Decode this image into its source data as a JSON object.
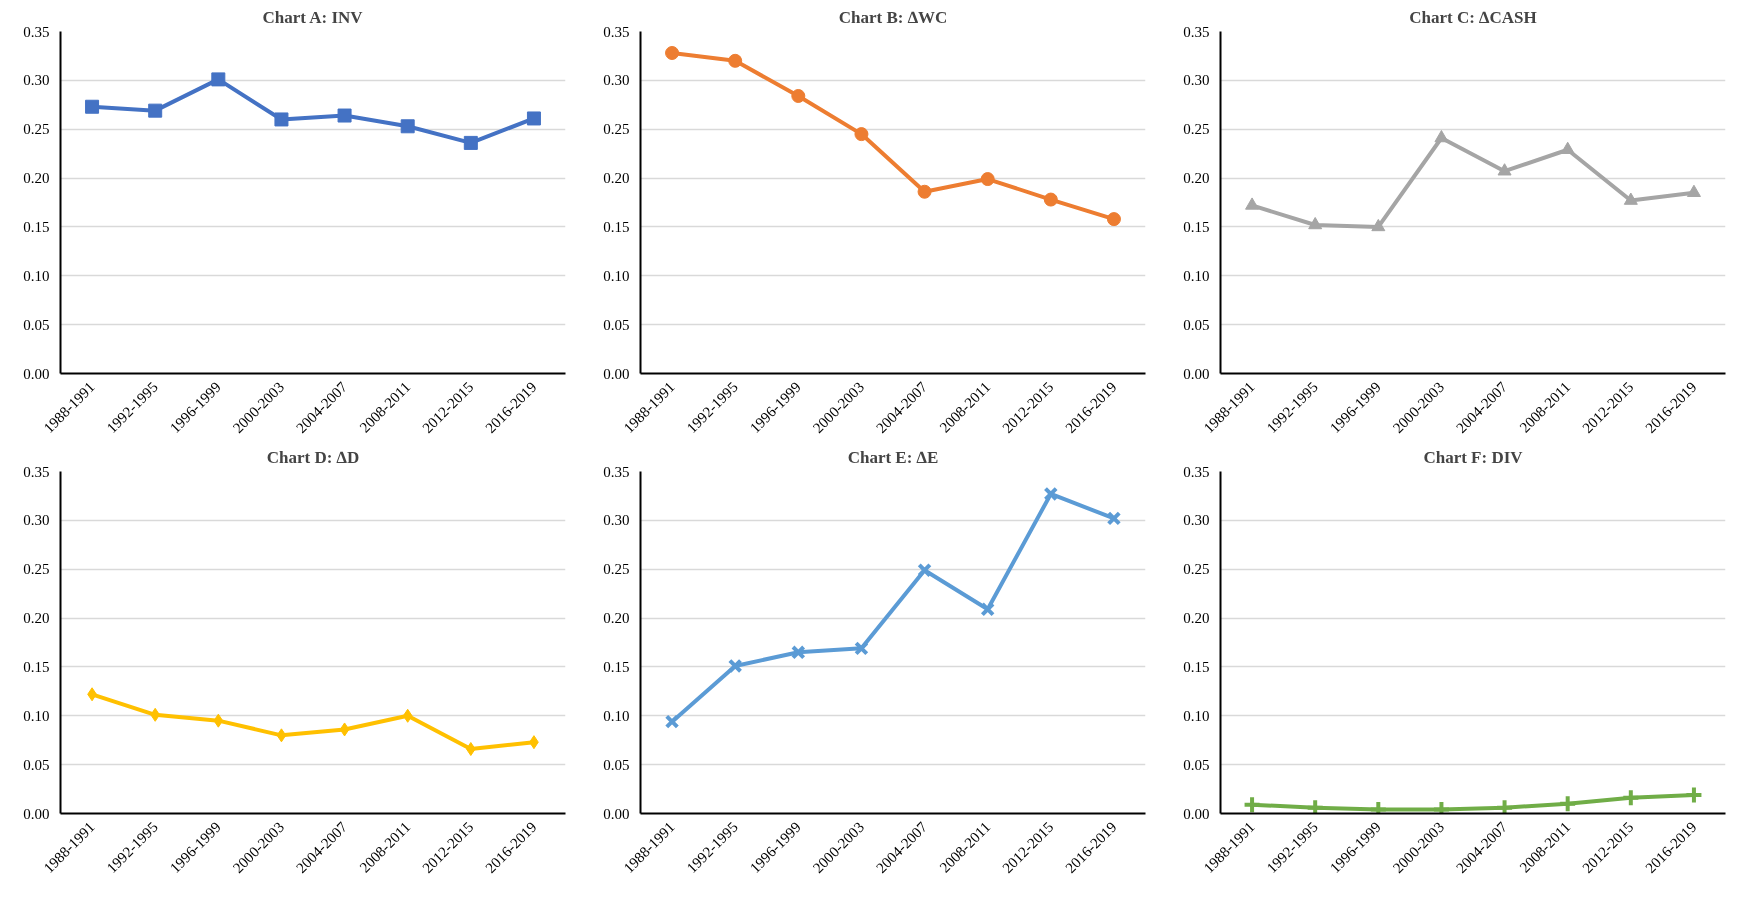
{
  "chart_data": [
    {
      "type": "line",
      "title": "Chart A: INV",
      "categories": [
        "1988-1991",
        "1992-1995",
        "1996-1999",
        "2000-2003",
        "2004-2007",
        "2008-2011",
        "2012-2015",
        "2016-2019"
      ],
      "series": [
        {
          "color": "#4472c4",
          "values": [
            0.273,
            0.269,
            0.301,
            0.26,
            0.264,
            0.253,
            0.236,
            0.261
          ]
        }
      ],
      "marker": "square",
      "ylim": [
        0,
        0.35
      ],
      "yticks": [
        {
          "value": 0,
          "label": "0.00"
        },
        {
          "value": 0.05,
          "label": "0.05"
        },
        {
          "value": 0.1,
          "label": "0.10"
        },
        {
          "value": 0.15,
          "label": "0.15"
        },
        {
          "value": 0.2,
          "label": "0.20"
        },
        {
          "value": 0.25,
          "label": "0.25"
        },
        {
          "value": 0.3,
          "label": "0.30"
        },
        {
          "value": 0.35,
          "label": "0.35"
        }
      ],
      "grid": "y"
    },
    {
      "type": "line",
      "title": "Chart B: ∆WC",
      "categories": [
        "1988-1991",
        "1992-1995",
        "1996-1999",
        "2000-2003",
        "2004-2007",
        "2008-2011",
        "2012-2015",
        "2016-2019"
      ],
      "series": [
        {
          "color": "#ed7d31",
          "values": [
            0.328,
            0.32,
            0.284,
            0.245,
            0.186,
            0.199,
            0.178,
            0.158
          ]
        }
      ],
      "marker": "circle",
      "ylim": [
        0,
        0.35
      ],
      "yticks": [
        {
          "value": 0,
          "label": "0.00"
        },
        {
          "value": 0.05,
          "label": "0.05"
        },
        {
          "value": 0.1,
          "label": "0.10"
        },
        {
          "value": 0.15,
          "label": "0.15"
        },
        {
          "value": 0.2,
          "label": "0.20"
        },
        {
          "value": 0.25,
          "label": "0.25"
        },
        {
          "value": 0.3,
          "label": "0.30"
        },
        {
          "value": 0.35,
          "label": "0.35"
        }
      ],
      "grid": "y"
    },
    {
      "type": "line",
      "title": "Chart C: ∆CASH",
      "categories": [
        "1988-1991",
        "1992-1995",
        "1996-1999",
        "2000-2003",
        "2004-2007",
        "2008-2011",
        "2012-2015",
        "2016-2019"
      ],
      "series": [
        {
          "color": "#a5a5a5",
          "values": [
            0.172,
            0.152,
            0.15,
            0.241,
            0.207,
            0.229,
            0.177,
            0.185
          ]
        }
      ],
      "marker": "triangle",
      "ylim": [
        0,
        0.35
      ],
      "yticks": [
        {
          "value": 0,
          "label": "0.00"
        },
        {
          "value": 0.05,
          "label": "0.05"
        },
        {
          "value": 0.1,
          "label": "0.10"
        },
        {
          "value": 0.15,
          "label": "0.15"
        },
        {
          "value": 0.2,
          "label": "0.20"
        },
        {
          "value": 0.25,
          "label": "0.25"
        },
        {
          "value": 0.3,
          "label": "0.30"
        },
        {
          "value": 0.35,
          "label": "0.35"
        }
      ],
      "grid": "y"
    },
    {
      "type": "line",
      "title": "Chart D: ∆D",
      "categories": [
        "1988-1991",
        "1992-1995",
        "1996-1999",
        "2000-2003",
        "2004-2007",
        "2008-2011",
        "2012-2015",
        "2016-2019"
      ],
      "series": [
        {
          "color": "#ffc000",
          "values": [
            0.122,
            0.101,
            0.095,
            0.08,
            0.086,
            0.1,
            0.066,
            0.073
          ]
        }
      ],
      "marker": "diamond",
      "ylim": [
        0,
        0.35
      ],
      "yticks": [
        {
          "value": 0,
          "label": "0.00"
        },
        {
          "value": 0.05,
          "label": "0.05"
        },
        {
          "value": 0.1,
          "label": "0.10"
        },
        {
          "value": 0.15,
          "label": "0.15"
        },
        {
          "value": 0.2,
          "label": "0.20"
        },
        {
          "value": 0.25,
          "label": "0.25"
        },
        {
          "value": 0.3,
          "label": "0.30"
        },
        {
          "value": 0.35,
          "label": "0.35"
        }
      ],
      "grid": "y"
    },
    {
      "type": "line",
      "title": "Chart E: ∆E",
      "categories": [
        "1988-1991",
        "1992-1995",
        "1996-1999",
        "2000-2003",
        "2004-2007",
        "2008-2011",
        "2012-2015",
        "2016-2019"
      ],
      "series": [
        {
          "color": "#5b9bd5",
          "values": [
            0.094,
            0.151,
            0.165,
            0.169,
            0.249,
            0.209,
            0.327,
            0.302
          ]
        }
      ],
      "marker": "x",
      "ylim": [
        0,
        0.35
      ],
      "yticks": [
        {
          "value": 0,
          "label": "0.00"
        },
        {
          "value": 0.05,
          "label": "0.05"
        },
        {
          "value": 0.1,
          "label": "0.10"
        },
        {
          "value": 0.15,
          "label": "0.15"
        },
        {
          "value": 0.2,
          "label": "0.20"
        },
        {
          "value": 0.25,
          "label": "0.25"
        },
        {
          "value": 0.3,
          "label": "0.30"
        },
        {
          "value": 0.35,
          "label": "0.35"
        }
      ],
      "grid": "y"
    },
    {
      "type": "line",
      "title": "Chart F: DIV",
      "categories": [
        "1988-1991",
        "1992-1995",
        "1996-1999",
        "2000-2003",
        "2004-2007",
        "2008-2011",
        "2012-2015",
        "2016-2019"
      ],
      "series": [
        {
          "color": "#70ad47",
          "values": [
            0.009,
            0.006,
            0.004,
            0.004,
            0.006,
            0.01,
            0.016,
            0.019
          ]
        }
      ],
      "marker": "cross",
      "ylim": [
        0,
        0.35
      ],
      "yticks": [
        {
          "value": 0,
          "label": "0.00"
        },
        {
          "value": 0.05,
          "label": "0.05"
        },
        {
          "value": 0.1,
          "label": "0.10"
        },
        {
          "value": 0.15,
          "label": "0.15"
        },
        {
          "value": 0.2,
          "label": "0.20"
        },
        {
          "value": 0.25,
          "label": "0.25"
        },
        {
          "value": 0.3,
          "label": "0.30"
        },
        {
          "value": 0.35,
          "label": "0.35"
        }
      ],
      "grid": "y"
    }
  ]
}
